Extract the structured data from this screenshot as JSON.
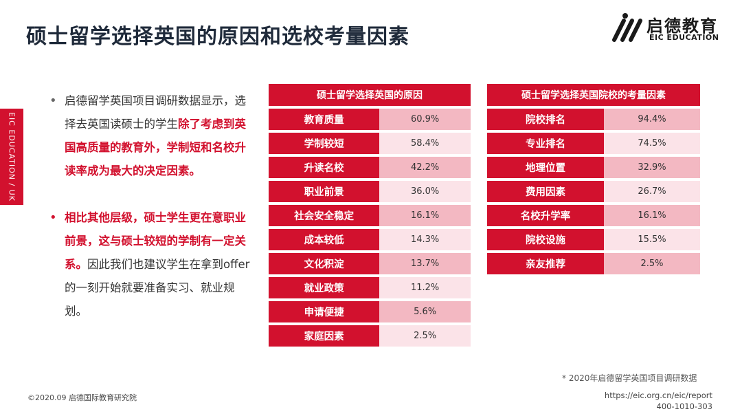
{
  "title": "硕士留学选择英国的原因和选校考量因素",
  "logo": {
    "cn": "启德教育",
    "en": "EIC EDUCATION"
  },
  "side_tab": "EIC EDUCATION / UK",
  "bullets": [
    {
      "parts": [
        {
          "text": "启德留学英国项目调研数据显示，选择去英国读硕士的学生",
          "style": "normal"
        },
        {
          "text": "除了考虑到英国高质量的教育外，学制短和名校升读率成为最大的决定因素。",
          "style": "em"
        }
      ]
    },
    {
      "parts": [
        {
          "text": "相比其他层级，硕士学生更在意职业前景，这与硕士较短的学制有一定关系。",
          "style": "em"
        },
        {
          "text": "因此我们也建议学生在拿到offer的一刻开始就要准备实习、就业规划。",
          "style": "normal"
        }
      ]
    }
  ],
  "table1": {
    "header": "硕士留学选择英国的原因",
    "rows": [
      {
        "label": "教育质量",
        "value": "60.9%"
      },
      {
        "label": "学制较短",
        "value": "58.4%"
      },
      {
        "label": "升读名校",
        "value": "42.2%"
      },
      {
        "label": "职业前景",
        "value": "36.0%"
      },
      {
        "label": "社会安全稳定",
        "value": "16.1%"
      },
      {
        "label": "成本较低",
        "value": "14.3%"
      },
      {
        "label": "文化积淀",
        "value": "13.7%"
      },
      {
        "label": "就业政策",
        "value": "11.2%"
      },
      {
        "label": "申请便捷",
        "value": "5.6%"
      },
      {
        "label": "家庭因素",
        "value": "2.5%"
      }
    ]
  },
  "table2": {
    "header": "硕士留学选择英国院校的考量因素",
    "rows": [
      {
        "label": "院校排名",
        "value": "94.4%"
      },
      {
        "label": "专业排名",
        "value": "74.5%"
      },
      {
        "label": "地理位置",
        "value": "32.9%"
      },
      {
        "label": "费用因素",
        "value": "26.7%"
      },
      {
        "label": "名校升学率",
        "value": "16.1%"
      },
      {
        "label": "院校设施",
        "value": "15.5%"
      },
      {
        "label": "亲友推荐",
        "value": "2.5%"
      }
    ]
  },
  "footnote": "* 2020年启德留学英国项目调研数据",
  "copyright": "©2020.09 启德国际教育研究院",
  "url": "https://eic.org.cn/eic/report",
  "phone": "400-1010-303",
  "colors": {
    "accent": "#d2112e",
    "cell_dark": "#f3b8c2",
    "cell_light": "#fbe3e8",
    "title": "#1f2a3a"
  }
}
